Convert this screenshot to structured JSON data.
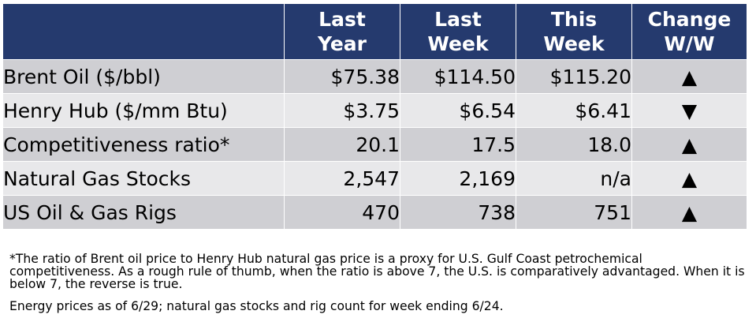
{
  "table": {
    "headers": [
      "",
      "Last\nYear",
      "Last\nWeek",
      "This\nWeek",
      "Change\nW/W"
    ],
    "header_lines": [
      {
        "line1": "",
        "line2": ""
      },
      {
        "line1": "Last",
        "line2": "Year"
      },
      {
        "line1": "Last",
        "line2": "Week"
      },
      {
        "line1": "This",
        "line2": "Week"
      },
      {
        "line1": "Change",
        "line2": "W/W"
      }
    ],
    "rows": [
      {
        "label": "Brent Oil ($/bbl)",
        "last_year": "$75.38",
        "last_week": "$114.50",
        "this_week": "$115.20",
        "change": "▲",
        "change_icon": "up-triangle-icon"
      },
      {
        "label": "Henry Hub ($/mm Btu)",
        "last_year": "$3.75",
        "last_week": "$6.54",
        "this_week": "$6.41",
        "change": "▼",
        "change_icon": "down-triangle-icon"
      },
      {
        "label": "Competitiveness ratio*",
        "last_year": "20.1",
        "last_week": "17.5",
        "this_week": "18.0",
        "change": "▲",
        "change_icon": "up-triangle-icon"
      },
      {
        "label": "Natural Gas Stocks",
        "last_year": "2,547",
        "last_week": "2,169",
        "this_week": "n/a",
        "change": "▲",
        "change_icon": "up-triangle-icon"
      },
      {
        "label": "US Oil & Gas Rigs",
        "last_year": "470",
        "last_week": "738",
        "this_week": "751",
        "change": "▲",
        "change_icon": "up-triangle-icon"
      }
    ]
  },
  "notes": {
    "footnote": "*The ratio of Brent oil price to Henry Hub natural gas price is a proxy for U.S. Gulf Coast petrochemical competitiveness. As a rough rule of thumb, when the ratio is above 7, the U.S. is comparatively advantaged. When it is below 7, the reverse is true.",
    "source": "Energy prices as of 6/29; natural gas stocks and rig count for week ending 6/24."
  },
  "colors": {
    "header_bg": "#253A6E",
    "header_text": "#FFFFFF",
    "row_dark": "#CFCFD3",
    "row_light": "#E8E8EA"
  }
}
